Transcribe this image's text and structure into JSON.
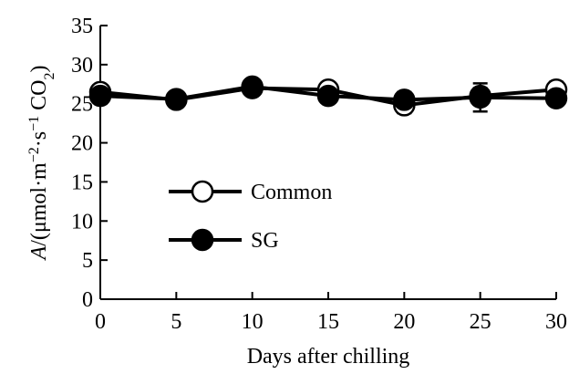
{
  "chart_data": {
    "type": "line",
    "title": "",
    "xlabel": "Days after chilling",
    "ylabel": {
      "italic": "A",
      "prefix": "/(μmol·m",
      "sup1": "−2",
      "mid": "·s",
      "sup2": "−1",
      "unit": " CO",
      "sub": "2",
      "close": ")"
    },
    "xlim": [
      0,
      30
    ],
    "ylim": [
      0,
      35
    ],
    "xticks": [
      "0",
      "5",
      "10",
      "15",
      "20",
      "25",
      "30"
    ],
    "yticks": [
      "0",
      "5",
      "10",
      "15",
      "20",
      "25",
      "30",
      "35"
    ],
    "grid": false,
    "legend_position": "left-center",
    "x": [
      0,
      5,
      10,
      15,
      20,
      25,
      30
    ],
    "series": [
      {
        "name": "Common",
        "marker": "open-circle",
        "values": [
          26.5,
          25.5,
          27.0,
          26.8,
          24.8,
          26.0,
          26.8
        ],
        "errors": [
          0.5,
          0.5,
          0.5,
          0.6,
          1.0,
          1.0,
          1.0
        ]
      },
      {
        "name": "SG",
        "marker": "filled-circle",
        "values": [
          26.0,
          25.6,
          27.2,
          26.0,
          25.5,
          25.8,
          25.7
        ],
        "errors": [
          0.5,
          0.5,
          0.5,
          0.5,
          1.0,
          1.8,
          0.5
        ]
      }
    ],
    "colors": {
      "line": "#000000",
      "marker_fill_open": "#ffffff",
      "marker_fill_filled": "#000000"
    }
  }
}
